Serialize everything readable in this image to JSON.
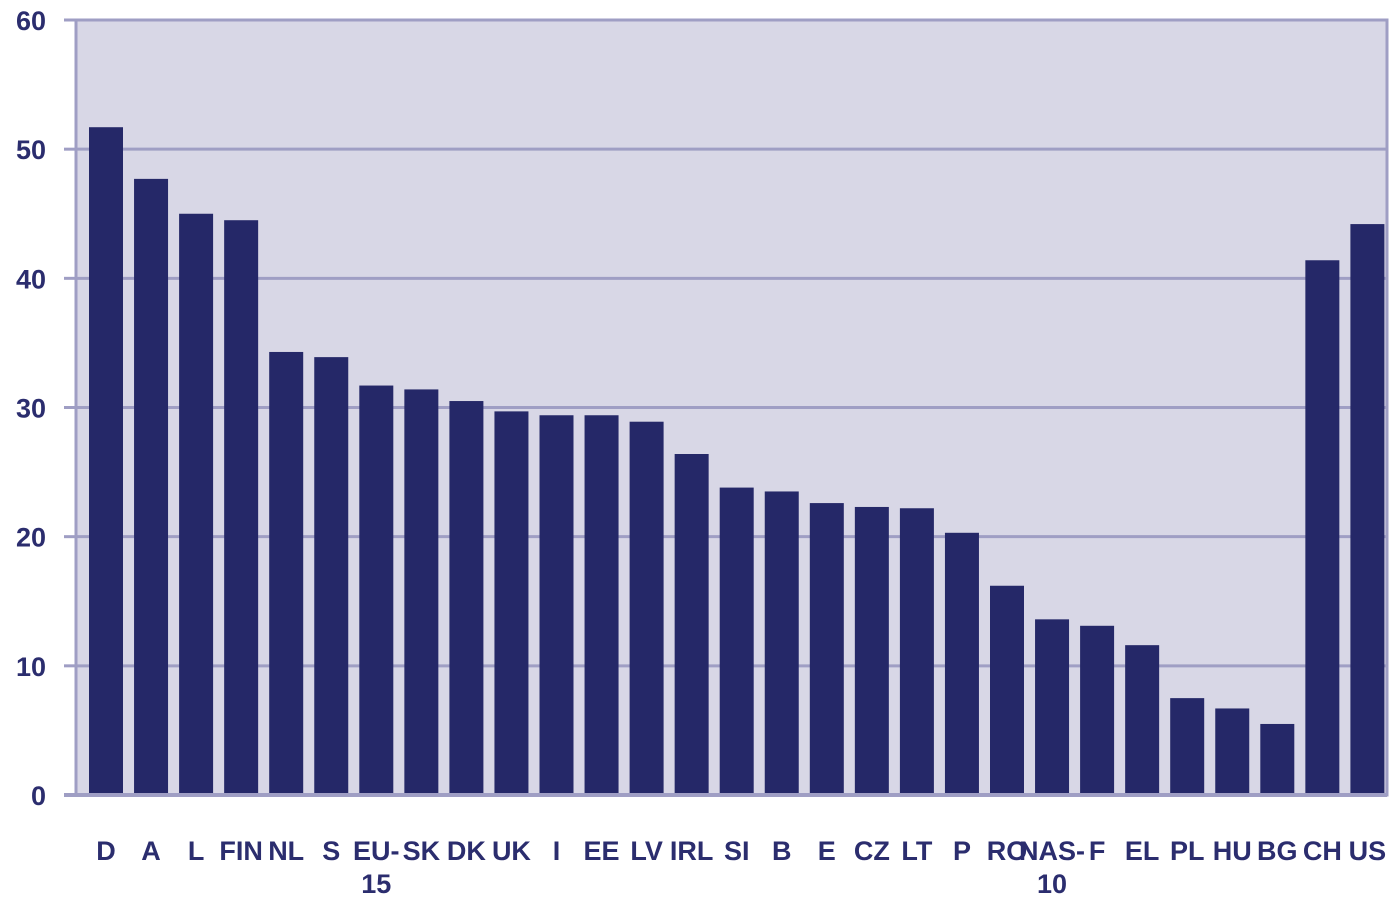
{
  "chart_data": {
    "type": "bar",
    "title": "",
    "xlabel": "",
    "ylabel": "",
    "ylim": [
      0,
      60
    ],
    "yticks": [
      0,
      10,
      20,
      30,
      40,
      50,
      60
    ],
    "grid": true,
    "categories": [
      "D",
      "A",
      "L",
      "FIN",
      "NL",
      "S",
      "EU-15",
      "SK",
      "DK",
      "UK",
      "I",
      "EE",
      "LV",
      "IRL",
      "SI",
      "B",
      "E",
      "CZ",
      "LT",
      "P",
      "RO",
      "NAS-10",
      "F",
      "EL",
      "PL",
      "HU",
      "BG",
      "CH",
      "US"
    ],
    "values": [
      51.7,
      47.7,
      45.0,
      44.5,
      34.3,
      33.9,
      31.7,
      31.4,
      30.5,
      29.7,
      29.4,
      29.4,
      28.9,
      26.4,
      23.8,
      23.5,
      22.6,
      22.3,
      22.2,
      20.3,
      16.2,
      13.6,
      13.1,
      11.6,
      7.5,
      6.7,
      5.5,
      41.4,
      44.2
    ],
    "colors": {
      "bar": "#252868",
      "plot_background": "#d8d7e6",
      "gridline": "#9f9ec4",
      "axis": "#9f9ec4",
      "text": "#2b2d6e"
    }
  }
}
